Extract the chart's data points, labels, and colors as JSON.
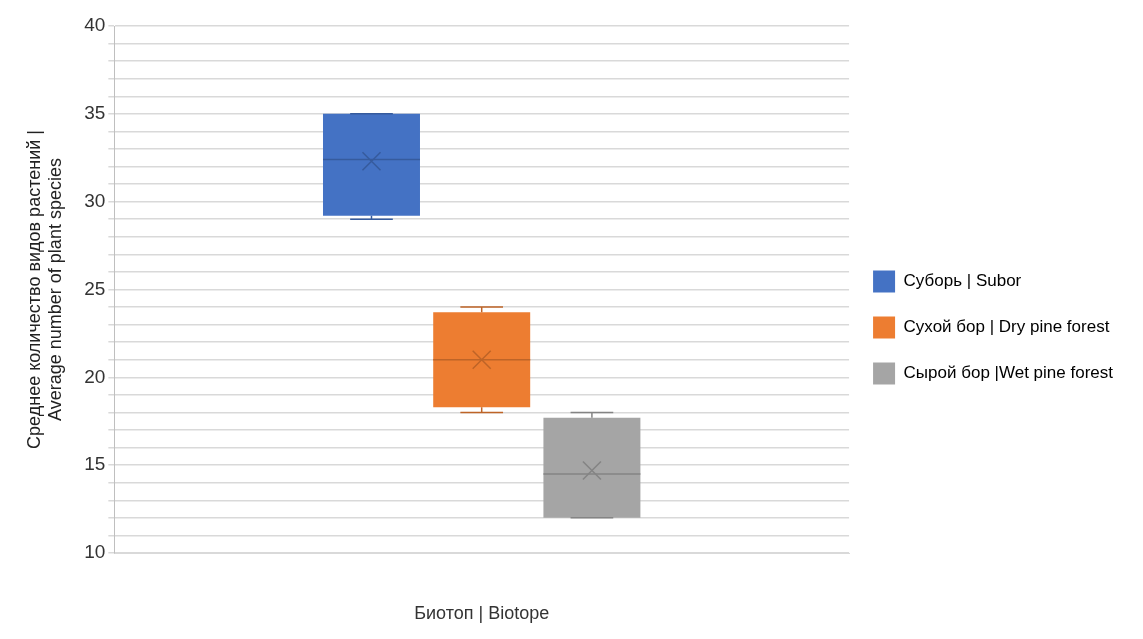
{
  "chart_data": {
    "type": "box",
    "xlabel": "Биотоп | Biotope",
    "ylabel": "Среднее количество видов растений | Average number of plant species",
    "categories": [
      null
    ],
    "series": [
      {
        "name": "Суборь | Subor",
        "color": "#4472c4",
        "boxes": [
          {
            "low": 29,
            "q1": 29.2,
            "median": 32.4,
            "q3": 35,
            "high": 35,
            "mean": 32.3
          }
        ]
      },
      {
        "name": "Сухой бор | Dry pine forest",
        "color": "#ed7d31",
        "boxes": [
          {
            "low": 18,
            "q1": 18.3,
            "median": 21,
            "q3": 23.7,
            "high": 24,
            "mean": 21
          }
        ]
      },
      {
        "name": "Сырой бор |Wet pine forest",
        "color": "#a5a5a5",
        "boxes": [
          {
            "low": 12,
            "q1": 12,
            "median": 14.5,
            "q3": 17.7,
            "high": 18,
            "mean": 14.7
          }
        ]
      }
    ],
    "ylim": [
      10,
      40
    ],
    "yticks": [
      10,
      {
        "value": 11,
        "label": null
      },
      {
        "value": 12,
        "label": null
      },
      {
        "value": 13,
        "label": null
      },
      {
        "value": 14,
        "label": null
      },
      15,
      {
        "value": 16,
        "label": null
      },
      {
        "value": 17,
        "label": null
      },
      {
        "value": 18,
        "label": null
      },
      {
        "value": 19,
        "label": null
      },
      20,
      {
        "value": 21,
        "label": null
      },
      {
        "value": 22,
        "label": null
      },
      {
        "value": 23,
        "label": null
      },
      {
        "value": 24,
        "label": null
      },
      25,
      {
        "value": 26,
        "label": null
      },
      {
        "value": 27,
        "label": null
      },
      {
        "value": 28,
        "label": null
      },
      {
        "value": 29,
        "label": null
      },
      30,
      {
        "value": 31,
        "label": null
      },
      {
        "value": 32,
        "label": null
      },
      {
        "value": 33,
        "label": null
      },
      {
        "value": 34,
        "label": null
      },
      35,
      {
        "value": 36,
        "label": null
      },
      {
        "value": 37,
        "label": null
      },
      {
        "value": 38,
        "label": null
      },
      {
        "value": 39,
        "label": null
      },
      40
    ],
    "grid": "y",
    "legend": "right"
  }
}
